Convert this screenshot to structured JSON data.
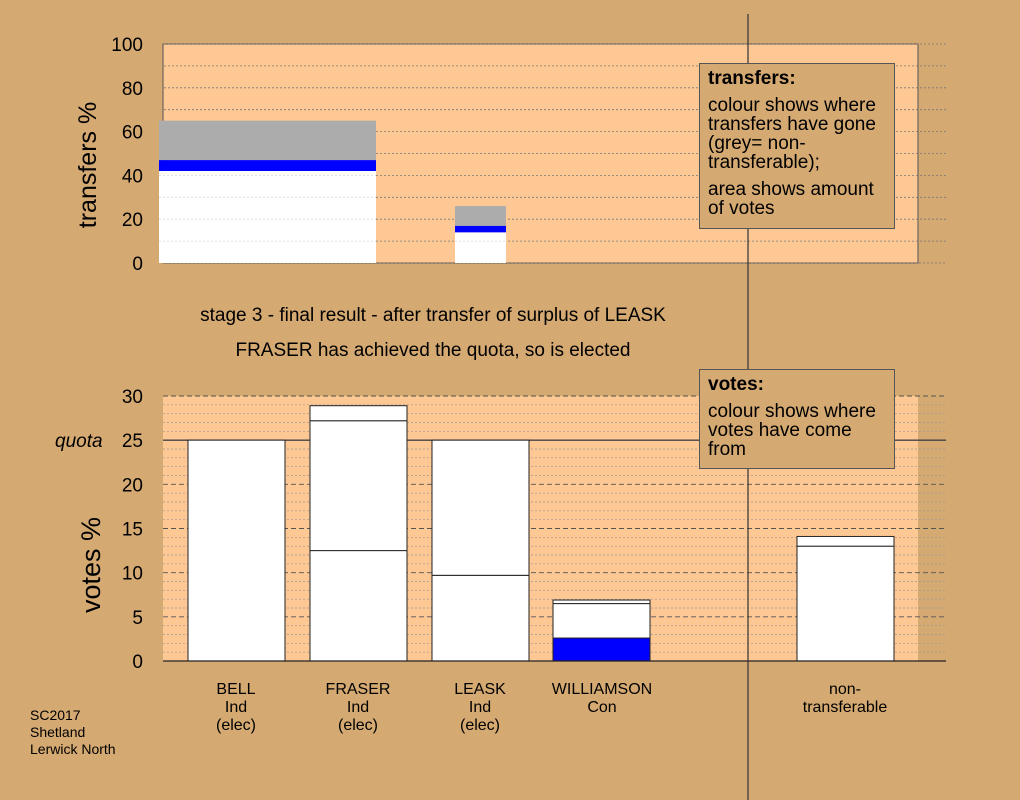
{
  "captions": {
    "stage_line": "stage 3 - final result - after transfer of surplus of LEASK",
    "elected_line": "FRASER has achieved the quota, so is elected"
  },
  "legend_transfers": {
    "title": "transfers:",
    "desc1": "colour shows where transfers have gone (grey= non-transferable);",
    "desc2": "area shows amount of votes"
  },
  "legend_votes": {
    "title": "votes:",
    "desc1": "colour shows where votes have come from"
  },
  "source": {
    "line1": "SC2017",
    "line2": "Shetland",
    "line3": "Lerwick North"
  },
  "candidates": [
    {
      "name": "BELL",
      "party": "Ind",
      "status": "(elec)"
    },
    {
      "name": "FRASER",
      "party": "Ind",
      "status": "(elec)"
    },
    {
      "name": "LEASK",
      "party": "Ind",
      "status": "(elec)"
    },
    {
      "name": "WILLIAMSON",
      "party": "Con",
      "status": ""
    },
    {
      "name": "non-",
      "party": "transferable",
      "status": ""
    }
  ],
  "colors": {
    "background": "#d5a972",
    "plot_area": "#fdc893",
    "bar_fill": "#ffffff",
    "con_blue": "#0000ff",
    "non_transferable_grey": "#acacac"
  },
  "chart_data": [
    {
      "type": "bar",
      "panel": "transfers",
      "ylabel": "transfers %",
      "ylim": [
        0,
        100
      ],
      "yticks": [
        0,
        20,
        40,
        60,
        80,
        100
      ],
      "bars": [
        {
          "segments": [
            {
              "from": 0,
              "to": 41,
              "color": "white"
            },
            {
              "from": 41,
              "to": 42,
              "color": "white"
            },
            {
              "from": 42,
              "to": 47,
              "color": "blue"
            },
            {
              "from": 47,
              "to": 65,
              "color": "grey"
            }
          ]
        },
        {
          "segments": [
            {
              "from": 0,
              "to": 14,
              "color": "white"
            },
            {
              "from": 14,
              "to": 17,
              "color": "blue"
            },
            {
              "from": 17,
              "to": 26,
              "color": "grey"
            }
          ]
        }
      ]
    },
    {
      "type": "bar",
      "panel": "votes",
      "ylabel": "votes %",
      "ylim": [
        0,
        30
      ],
      "yticks": [
        0,
        5,
        10,
        15,
        20,
        25,
        30
      ],
      "quota": {
        "value": 25,
        "label": "quota"
      },
      "candidates": [
        "BELL",
        "FRASER",
        "LEASK",
        "WILLIAMSON",
        "non-transferable"
      ],
      "bars": [
        {
          "segments": [
            {
              "from": 0,
              "to": 25,
              "color": "white"
            }
          ]
        },
        {
          "segments": [
            {
              "from": 0,
              "to": 12.5,
              "color": "white"
            },
            {
              "from": 12.5,
              "to": 27.2,
              "color": "white"
            },
            {
              "from": 27.2,
              "to": 28.9,
              "color": "white"
            }
          ]
        },
        {
          "segments": [
            {
              "from": 0,
              "to": 9.7,
              "color": "white"
            },
            {
              "from": 9.7,
              "to": 25,
              "color": "white"
            }
          ]
        },
        {
          "segments": [
            {
              "from": 0,
              "to": 2.6,
              "color": "blue"
            },
            {
              "from": 2.6,
              "to": 6.5,
              "color": "white"
            },
            {
              "from": 6.5,
              "to": 6.9,
              "color": "white"
            }
          ]
        },
        {
          "segments": [
            {
              "from": 0,
              "to": 13.0,
              "color": "white"
            },
            {
              "from": 13.0,
              "to": 14.1,
              "color": "white"
            }
          ]
        }
      ]
    }
  ]
}
